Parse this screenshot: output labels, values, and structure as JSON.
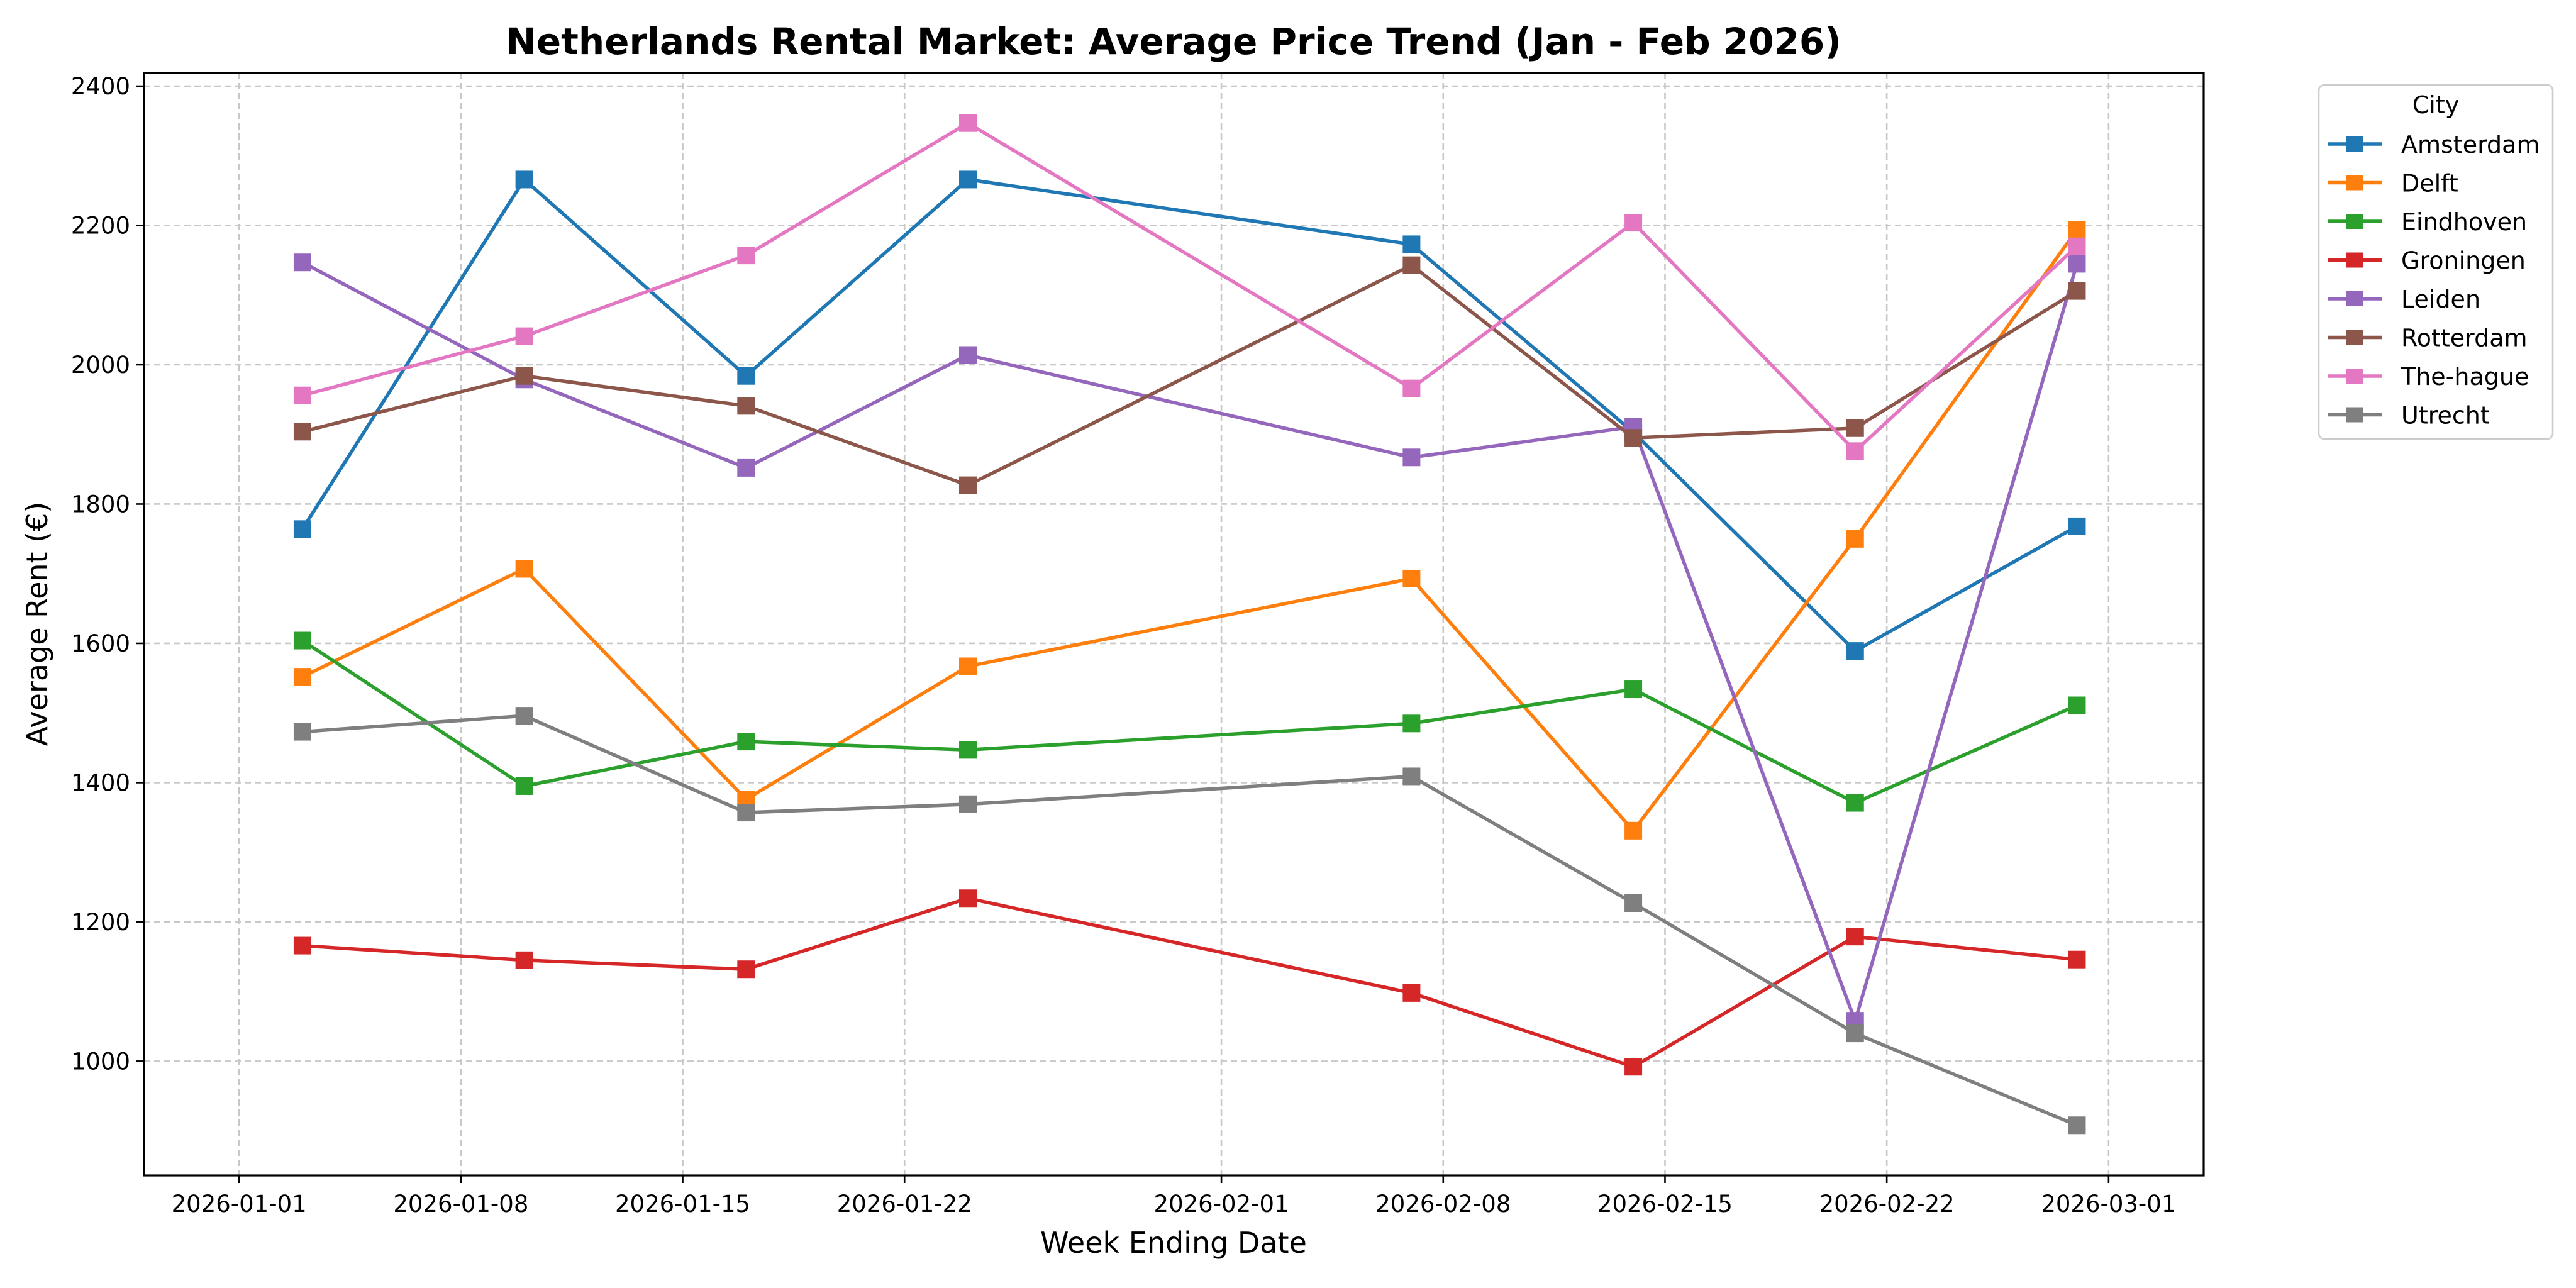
{
  "chart_data": {
    "type": "line",
    "title": "Netherlands Rental Market: Average Price Trend (Jan - Feb 2026)",
    "xlabel": "Week Ending Date",
    "ylabel": "Average Rent (€)",
    "x_type": "date",
    "xlim": [
      "2025-12-29",
      "2026-03-04"
    ],
    "ylim": [
      836,
      2419
    ],
    "grid": true,
    "x_ticks": [
      "2026-01-01",
      "2026-01-08",
      "2026-01-15",
      "2026-01-22",
      "2026-02-01",
      "2026-02-08",
      "2026-02-15",
      "2026-02-22",
      "2026-03-01"
    ],
    "y_ticks": [
      1000,
      1200,
      1400,
      1600,
      1800,
      2000,
      2200,
      2400
    ],
    "y_tick_labels": [
      "1000",
      "1200",
      "1400",
      "1600",
      "1800",
      "2000",
      "2200",
      "2400"
    ],
    "x": [
      "2026-01-03",
      "2026-01-10",
      "2026-01-17",
      "2026-01-24",
      "2026-02-07",
      "2026-02-14",
      "2026-02-21",
      "2026-02-28"
    ],
    "legend": {
      "title": "City",
      "position": "outside-top-right"
    },
    "series": [
      {
        "name": "Amsterdam",
        "color": "#1f77b4",
        "values": [
          1764,
          2266,
          1984,
          2266,
          2173,
          1903,
          1589,
          1768
        ]
      },
      {
        "name": "Delft",
        "color": "#ff7f0e",
        "values": [
          1552,
          1707,
          1376,
          1567,
          1693,
          1331,
          1750,
          2194
        ]
      },
      {
        "name": "Eindhoven",
        "color": "#2ca02c",
        "values": [
          1604,
          1395,
          1459,
          1447,
          1485,
          1534,
          1371,
          1511
        ]
      },
      {
        "name": "Groningen",
        "color": "#d62728",
        "values": [
          1166,
          1145,
          1132,
          1234,
          1098,
          992,
          1179,
          1146
        ]
      },
      {
        "name": "Leiden",
        "color": "#9467bd",
        "values": [
          2147,
          1979,
          1852,
          2014,
          1867,
          1911,
          1058,
          2145
        ]
      },
      {
        "name": "Rotterdam",
        "color": "#8c564b",
        "values": [
          1904,
          1984,
          1941,
          1827,
          2143,
          1895,
          1909,
          2106
        ]
      },
      {
        "name": "The-hague",
        "color": "#e377c2",
        "values": [
          1956,
          2041,
          2157,
          2347,
          1966,
          2204,
          1876,
          2170
        ]
      },
      {
        "name": "Utrecht",
        "color": "#7f7f7f",
        "values": [
          1473,
          1496,
          1357,
          1369,
          1409,
          1227,
          1040,
          908
        ]
      }
    ]
  }
}
